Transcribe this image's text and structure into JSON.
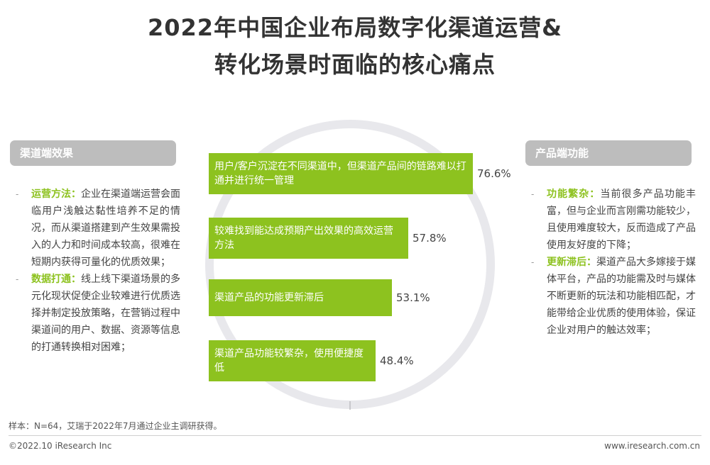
{
  "title": {
    "line1": "2022年中国企业布局数字化渠道运营&",
    "line2": "转化场景时面临的核心痛点"
  },
  "left_panel": {
    "header": "渠道端效果",
    "bullets": [
      {
        "keyword": "运营方法：",
        "text": "企业在渠道端运营会面临用户浅触达黏性培养不足的情况，而从渠道搭建到产生效果需投入的人力和时间成本较高，很难在短期内获得可量化的优质效果；"
      },
      {
        "keyword": "数据打通：",
        "text": "线上线下渠道场景的多元化现状促使企业较难进行优质选择并制定投放策略，在营销过程中渠道间的用户、数据、资源等信息的打通转换相对困难；"
      }
    ]
  },
  "right_panel": {
    "header": "产品端功能",
    "bullets": [
      {
        "keyword": "功能繁杂：",
        "text": "当前很多产品功能丰富，但与企业而言刚需功能较少，且使用难度较大，反而造成了产品使用友好度的下降；"
      },
      {
        "keyword": "更新滞后：",
        "text": "渠道产品大多嫁接于媒体平台，产品的功能需及时与媒体不断更新的玩法和功能相匹配，才能带给企业优质的使用体验，保证企业对用户的触达效率；"
      }
    ]
  },
  "chart_data": {
    "type": "bar",
    "orientation": "horizontal",
    "categories": [
      "用户/客户沉淀在不同渠道中，但渠道产品间的链路难以打通并进行统一管理",
      "较难找到能达成预期产出效果的高效运营方法",
      "渠道产品的功能更新滞后",
      "渠道产品功能较繁杂，使用便捷度低"
    ],
    "values": [
      76.6,
      57.8,
      53.1,
      48.4
    ],
    "value_labels": [
      "76.6%",
      "57.8%",
      "53.1%",
      "48.4%"
    ],
    "bar_color": "#8dc21f"
  },
  "footer": {
    "note": "样本：N=64，艾瑞于2022年7月通过企业主调研获得。",
    "copyright": "©2022.10 iResearch Inc",
    "website": "www.iresearch.com.cn"
  }
}
